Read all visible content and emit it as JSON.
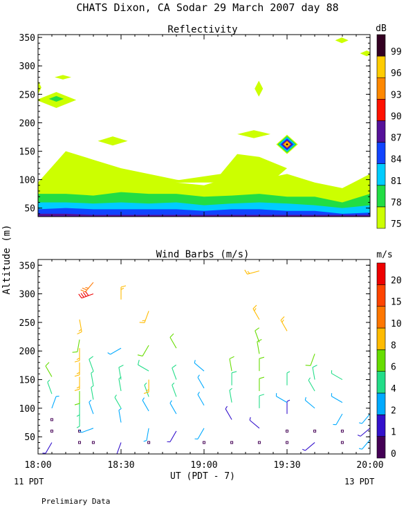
{
  "header": {
    "title": "CHATS Dixon, CA   Sodar  29 March 2007  day  88",
    "time_axis_label": "UT  (PDT - 7)",
    "left_date": "11 PDT",
    "right_date": "13 PDT",
    "footer_note": "Prelimiary Data"
  },
  "colors": {
    "reflectivity": [
      "#ccff00",
      "#22dd44",
      "#00ccff",
      "#1144ff",
      "#551199",
      "#ff1100",
      "#ff8800",
      "#ffcc00",
      "#330022"
    ],
    "wind": [
      "#440055",
      "#3311cc",
      "#00aaff",
      "#22dd88",
      "#66dd00",
      "#ffbb00",
      "#ff7700",
      "#ff4400",
      "#ee0000"
    ]
  },
  "chart_data": [
    {
      "type": "heatmap",
      "title": "Reflectivity",
      "ylabel": "",
      "xlim": [
        18.0,
        20.0
      ],
      "ylim": [
        35,
        355
      ],
      "x_ticks": [
        18.0,
        18.5,
        19.0,
        19.5,
        20.0
      ],
      "x_tick_labels": [
        "18:00",
        "18:30",
        "19:00",
        "19:30",
        "20:00"
      ],
      "y_ticks": [
        50,
        100,
        150,
        200,
        250,
        300,
        350
      ],
      "legend_title": "dB",
      "legend_placement": "right",
      "levels": [
        75,
        78,
        81,
        84,
        87,
        90,
        93,
        96,
        99
      ],
      "x": [
        18.0,
        18.167,
        18.333,
        18.5,
        18.667,
        18.833,
        19.0,
        19.167,
        19.333,
        19.5,
        19.667,
        19.833,
        20.0
      ],
      "bands": [
        {
          "level": 75,
          "top": [
            95,
            110,
            112,
            115,
            105,
            95,
            90,
            105,
            100,
            110,
            95,
            85,
            110
          ]
        },
        {
          "level": 78,
          "top": [
            75,
            75,
            72,
            78,
            75,
            75,
            70,
            72,
            75,
            70,
            70,
            60,
            75
          ]
        },
        {
          "level": 81,
          "top": [
            60,
            60,
            58,
            60,
            58,
            60,
            55,
            58,
            60,
            58,
            55,
            50,
            55
          ]
        },
        {
          "level": 84,
          "top": [
            48,
            50,
            48,
            48,
            48,
            48,
            45,
            48,
            48,
            45,
            45,
            40,
            42
          ]
        },
        {
          "level": 87,
          "top": [
            40,
            40,
            38,
            38,
            38,
            38,
            38,
            38,
            38,
            38,
            38,
            38,
            38
          ]
        }
      ],
      "features": [
        {
          "type": "area",
          "level": 75,
          "points": [
            [
              18.0,
              95
            ],
            [
              18.167,
              150
            ],
            [
              18.333,
              135
            ],
            [
              18.5,
              120
            ],
            [
              18.667,
              110
            ],
            [
              18.833,
              100
            ],
            [
              18.95,
              95
            ]
          ]
        },
        {
          "type": "area",
          "level": 75,
          "points": [
            [
              18.75,
              95
            ],
            [
              19.1,
              110
            ],
            [
              19.2,
              145
            ],
            [
              19.333,
              140
            ],
            [
              19.5,
              120
            ],
            [
              19.4,
              95
            ]
          ]
        },
        {
          "type": "blob",
          "level": 75,
          "center": [
            18.15,
            280
          ],
          "rx": 0.05,
          "ry": 4
        },
        {
          "type": "blob",
          "level": 75,
          "center": [
            18.11,
            240
          ],
          "rx": 0.12,
          "ry": 14
        },
        {
          "type": "blob",
          "level": 78,
          "center": [
            18.11,
            242
          ],
          "rx": 0.045,
          "ry": 5
        },
        {
          "type": "blob",
          "level": 75,
          "center": [
            18.0,
            262
          ],
          "rx": 0.02,
          "ry": 12
        },
        {
          "type": "blob",
          "level": 75,
          "center": [
            18.45,
            168
          ],
          "rx": 0.09,
          "ry": 8
        },
        {
          "type": "blob",
          "level": 75,
          "center": [
            19.3,
            180
          ],
          "rx": 0.1,
          "ry": 7
        },
        {
          "type": "blob",
          "level": 75,
          "center": [
            19.33,
            260
          ],
          "rx": 0.025,
          "ry": 14
        },
        {
          "type": "blob",
          "level": 75,
          "center": [
            19.83,
            345
          ],
          "rx": 0.04,
          "ry": 5
        },
        {
          "type": "blob",
          "level": 75,
          "center": [
            19.98,
            322
          ],
          "rx": 0.04,
          "ry": 5
        },
        {
          "type": "diamond",
          "center": [
            19.5,
            162
          ],
          "rx": 0.13,
          "ry": 17,
          "levels": [
            75,
            78,
            81,
            84,
            87,
            93,
            96,
            99
          ]
        }
      ]
    },
    {
      "type": "scatter",
      "title": "Wind Barbs (m/s)",
      "ylabel": "Altitude (m)",
      "xlim": [
        18.0,
        20.0
      ],
      "ylim": [
        20,
        360
      ],
      "x_ticks": [
        18.0,
        18.5,
        19.0,
        19.5,
        20.0
      ],
      "x_tick_labels": [
        "18:00",
        "18:30",
        "19:00",
        "19:30",
        "20:00"
      ],
      "y_ticks": [
        50,
        100,
        150,
        200,
        250,
        300,
        350
      ],
      "legend_title": "m/s",
      "legend_placement": "right",
      "levels": [
        0,
        1,
        2,
        4,
        6,
        8,
        10,
        15,
        20
      ],
      "wind_speeds_fill_note": "",
      "barbs": [
        {
          "x": 18.0,
          "y": 115,
          "speed": 3,
          "dir": 330
        },
        {
          "x": 18.0,
          "y": 140,
          "speed": 4,
          "dir": 320
        },
        {
          "x": 18.0,
          "y": 165,
          "speed": 4,
          "dir": 300
        },
        {
          "x": 18.083,
          "y": 40,
          "speed": 1,
          "dir": 210
        },
        {
          "x": 18.083,
          "y": 60,
          "speed": 0,
          "dir": 0
        },
        {
          "x": 18.083,
          "y": 80,
          "speed": 0,
          "dir": 0
        },
        {
          "x": 18.083,
          "y": 100,
          "speed": 3,
          "dir": 20
        },
        {
          "x": 18.083,
          "y": 125,
          "speed": 4,
          "dir": 340
        },
        {
          "x": 18.083,
          "y": 155,
          "speed": 6,
          "dir": 330
        },
        {
          "x": 18.25,
          "y": 40,
          "speed": 0,
          "dir": 0
        },
        {
          "x": 18.25,
          "y": 60,
          "speed": 0,
          "dir": 0
        },
        {
          "x": 18.25,
          "y": 90,
          "speed": 4,
          "dir": 180
        },
        {
          "x": 18.25,
          "y": 110,
          "speed": 4,
          "dir": 180
        },
        {
          "x": 18.25,
          "y": 130,
          "speed": 6,
          "dir": 180
        },
        {
          "x": 18.25,
          "y": 155,
          "speed": 8,
          "dir": 180
        },
        {
          "x": 18.25,
          "y": 180,
          "speed": 8,
          "dir": 180
        },
        {
          "x": 18.25,
          "y": 205,
          "speed": 8,
          "dir": 180
        },
        {
          "x": 18.25,
          "y": 220,
          "speed": 7,
          "dir": 190
        },
        {
          "x": 18.25,
          "y": 255,
          "speed": 9,
          "dir": 170
        },
        {
          "x": 18.333,
          "y": 320,
          "speed": 13,
          "dir": 220
        },
        {
          "x": 18.333,
          "y": 300,
          "speed": 22,
          "dir": 250
        },
        {
          "x": 18.333,
          "y": 40,
          "speed": 0,
          "dir": 0
        },
        {
          "x": 18.333,
          "y": 65,
          "speed": 2,
          "dir": 250
        },
        {
          "x": 18.333,
          "y": 90,
          "speed": 3,
          "dir": 340
        },
        {
          "x": 18.333,
          "y": 115,
          "speed": 4,
          "dir": 350
        },
        {
          "x": 18.333,
          "y": 140,
          "speed": 4,
          "dir": 350
        },
        {
          "x": 18.333,
          "y": 165,
          "speed": 5,
          "dir": 340
        },
        {
          "x": 18.5,
          "y": 40,
          "speed": 1,
          "dir": 200
        },
        {
          "x": 18.5,
          "y": 75,
          "speed": 2,
          "dir": 350
        },
        {
          "x": 18.5,
          "y": 100,
          "speed": 4,
          "dir": 330
        },
        {
          "x": 18.5,
          "y": 130,
          "speed": 4,
          "dir": 350
        },
        {
          "x": 18.5,
          "y": 150,
          "speed": 5,
          "dir": 350
        },
        {
          "x": 18.5,
          "y": 205,
          "speed": 3,
          "dir": 240
        },
        {
          "x": 18.5,
          "y": 290,
          "speed": 8,
          "dir": 0
        },
        {
          "x": 18.667,
          "y": 40,
          "speed": 0,
          "dir": 0
        },
        {
          "x": 18.667,
          "y": 65,
          "speed": 2,
          "dir": 190
        },
        {
          "x": 18.667,
          "y": 95,
          "speed": 3,
          "dir": 330
        },
        {
          "x": 18.667,
          "y": 120,
          "speed": 4,
          "dir": 340
        },
        {
          "x": 18.667,
          "y": 150,
          "speed": 8,
          "dir": 180
        },
        {
          "x": 18.667,
          "y": 165,
          "speed": 5,
          "dir": 300
        },
        {
          "x": 18.667,
          "y": 210,
          "speed": 7,
          "dir": 210
        },
        {
          "x": 18.667,
          "y": 270,
          "speed": 9,
          "dir": 200
        },
        {
          "x": 18.833,
          "y": 60,
          "speed": 1,
          "dir": 210
        },
        {
          "x": 18.833,
          "y": 90,
          "speed": 2,
          "dir": 330
        },
        {
          "x": 18.833,
          "y": 120,
          "speed": 4,
          "dir": 340
        },
        {
          "x": 18.833,
          "y": 150,
          "speed": 5,
          "dir": 340
        },
        {
          "x": 18.833,
          "y": 205,
          "speed": 6,
          "dir": 330
        },
        {
          "x": 19.0,
          "y": 40,
          "speed": 0,
          "dir": 0
        },
        {
          "x": 19.0,
          "y": 65,
          "speed": 2,
          "dir": 210
        },
        {
          "x": 19.0,
          "y": 105,
          "speed": 3,
          "dir": 330
        },
        {
          "x": 19.0,
          "y": 135,
          "speed": 3,
          "dir": 330
        },
        {
          "x": 19.0,
          "y": 165,
          "speed": 3,
          "dir": 310
        },
        {
          "x": 19.167,
          "y": 40,
          "speed": 0,
          "dir": 0
        },
        {
          "x": 19.167,
          "y": 80,
          "speed": 1,
          "dir": 330
        },
        {
          "x": 19.167,
          "y": 110,
          "speed": 4,
          "dir": 350
        },
        {
          "x": 19.167,
          "y": 140,
          "speed": 5,
          "dir": 0
        },
        {
          "x": 19.167,
          "y": 165,
          "speed": 6,
          "dir": 350
        },
        {
          "x": 19.333,
          "y": 40,
          "speed": 0,
          "dir": 0
        },
        {
          "x": 19.333,
          "y": 65,
          "speed": 1,
          "dir": 310
        },
        {
          "x": 19.333,
          "y": 100,
          "speed": 5,
          "dir": 0
        },
        {
          "x": 19.333,
          "y": 130,
          "speed": 6,
          "dir": 0
        },
        {
          "x": 19.333,
          "y": 165,
          "speed": 6,
          "dir": 0
        },
        {
          "x": 19.333,
          "y": 195,
          "speed": 6,
          "dir": 350
        },
        {
          "x": 19.333,
          "y": 215,
          "speed": 6,
          "dir": 340
        },
        {
          "x": 19.333,
          "y": 255,
          "speed": 9,
          "dir": 330
        },
        {
          "x": 19.333,
          "y": 340,
          "speed": 9,
          "dir": 255
        },
        {
          "x": 19.5,
          "y": 40,
          "speed": 0,
          "dir": 0
        },
        {
          "x": 19.5,
          "y": 60,
          "speed": 0,
          "dir": 0
        },
        {
          "x": 19.5,
          "y": 90,
          "speed": 1,
          "dir": 0
        },
        {
          "x": 19.5,
          "y": 110,
          "speed": 3,
          "dir": 300
        },
        {
          "x": 19.5,
          "y": 140,
          "speed": 4,
          "dir": 0
        },
        {
          "x": 19.5,
          "y": 235,
          "speed": 9,
          "dir": 330
        },
        {
          "x": 19.667,
          "y": 40,
          "speed": 1,
          "dir": 230
        },
        {
          "x": 19.667,
          "y": 60,
          "speed": 0,
          "dir": 0
        },
        {
          "x": 19.667,
          "y": 100,
          "speed": 3,
          "dir": 310
        },
        {
          "x": 19.667,
          "y": 130,
          "speed": 4,
          "dir": 330
        },
        {
          "x": 19.667,
          "y": 150,
          "speed": 5,
          "dir": 350
        },
        {
          "x": 19.667,
          "y": 195,
          "speed": 6,
          "dir": 200
        },
        {
          "x": 19.833,
          "y": 40,
          "speed": 0,
          "dir": 0
        },
        {
          "x": 19.833,
          "y": 60,
          "speed": 0,
          "dir": 0
        },
        {
          "x": 19.833,
          "y": 90,
          "speed": 2,
          "dir": 210
        },
        {
          "x": 19.833,
          "y": 110,
          "speed": 3,
          "dir": 300
        },
        {
          "x": 19.833,
          "y": 150,
          "speed": 4,
          "dir": 300
        },
        {
          "x": 20.0,
          "y": 45,
          "speed": 2,
          "dir": 220
        },
        {
          "x": 20.0,
          "y": 65,
          "speed": 1,
          "dir": 230
        },
        {
          "x": 20.0,
          "y": 90,
          "speed": 2,
          "dir": 220
        }
      ]
    }
  ]
}
